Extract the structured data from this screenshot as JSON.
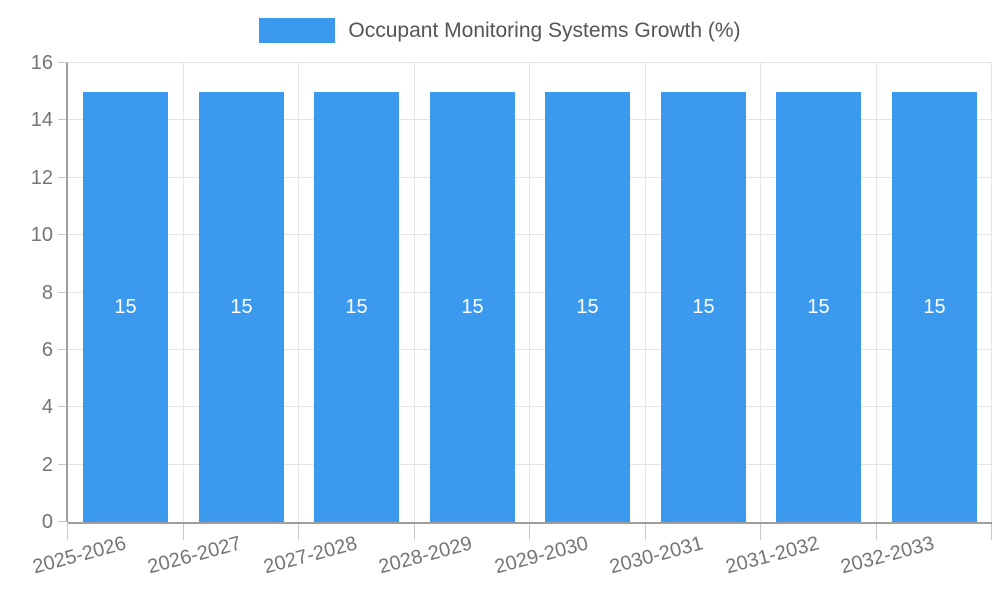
{
  "legend": {
    "label": "Occupant Monitoring Systems Growth (%)"
  },
  "colors": {
    "bar": "#3b99ee",
    "grid": "#e4e4e4",
    "axis": "#9e9e9e",
    "tick_mark": "#c8c8c8",
    "tick_text": "#757575",
    "legend_text": "#555555",
    "bar_label": "#ffffff",
    "background": "#ffffff"
  },
  "chart_data": {
    "type": "bar",
    "title": "",
    "series_name": "Occupant Monitoring Systems Growth (%)",
    "categories": [
      "2025-2026",
      "2026-2027",
      "2027-2028",
      "2028-2029",
      "2029-2030",
      "2030-2031",
      "2031-2032",
      "2032-2033"
    ],
    "values": [
      15,
      15,
      15,
      15,
      15,
      15,
      15,
      15
    ],
    "bar_labels": [
      "15",
      "15",
      "15",
      "15",
      "15",
      "15",
      "15",
      "15"
    ],
    "xlabel": "",
    "ylabel": "",
    "ylim": [
      0,
      16
    ],
    "yticks": [
      0,
      2,
      4,
      6,
      8,
      10,
      12,
      14,
      16
    ],
    "grid": true,
    "legend_position": "top",
    "x_tick_rotation": -15
  }
}
